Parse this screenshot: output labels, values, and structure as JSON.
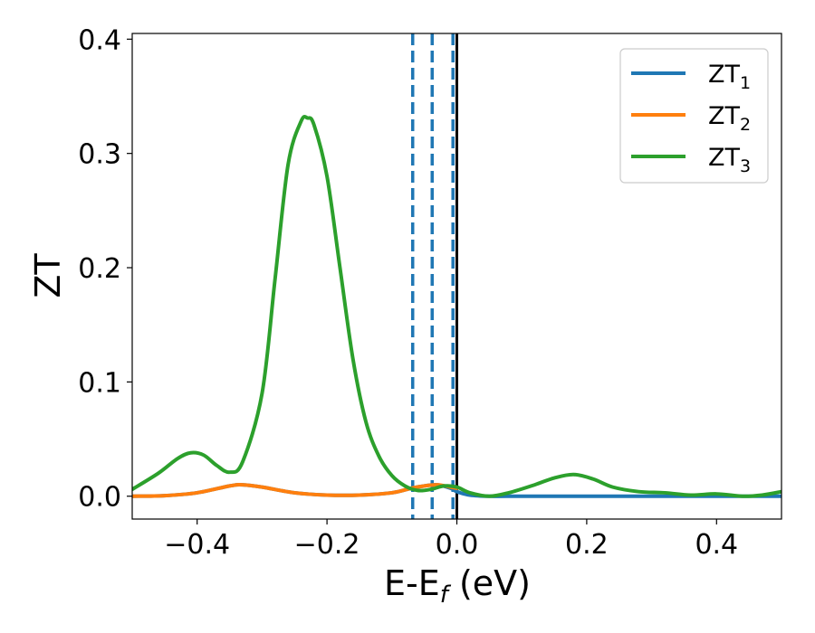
{
  "chart_data": {
    "type": "line",
    "xlabel": "E-E",
    "xlabel_sub": "f",
    "xlabel_unit": " (eV)",
    "ylabel": "ZT",
    "xlim": [
      -0.5,
      0.5
    ],
    "ylim": [
      -0.02,
      0.405
    ],
    "x_ticks": [
      -0.4,
      -0.2,
      0.0,
      0.2,
      0.4
    ],
    "x_tick_labels": [
      "−0.4",
      "−0.2",
      "0.0",
      "0.2",
      "0.4"
    ],
    "y_ticks": [
      0.0,
      0.1,
      0.2,
      0.3,
      0.4
    ],
    "y_tick_labels": [
      "0.0",
      "0.1",
      "0.2",
      "0.3",
      "0.4"
    ],
    "legend_position": "top-right",
    "grid": false,
    "vlines": [
      {
        "x": -0.068,
        "style": "dashed",
        "color": "#1f77b4"
      },
      {
        "x": -0.038,
        "style": "dashed",
        "color": "#1f77b4"
      },
      {
        "x": -0.006,
        "style": "dashed",
        "color": "#1f77b4"
      },
      {
        "x": 0.0,
        "style": "solid",
        "color": "#000000"
      }
    ],
    "series": [
      {
        "name": "ZT",
        "sub": "1",
        "color": "#1f77b4",
        "x": [
          -0.5,
          -0.45,
          -0.4,
          -0.35,
          -0.33,
          -0.3,
          -0.25,
          -0.2,
          -0.15,
          -0.1,
          -0.07,
          -0.05,
          -0.03,
          -0.01,
          0.0,
          0.02,
          0.05,
          0.1,
          0.2,
          0.3,
          0.4,
          0.5
        ],
        "y": [
          0.0,
          0.0005,
          0.003,
          0.009,
          0.01,
          0.008,
          0.003,
          0.001,
          0.001,
          0.003,
          0.007,
          0.009,
          0.01,
          0.007,
          0.004,
          0.001,
          0.0,
          0.0,
          0.0,
          0.0,
          0.0,
          0.0
        ]
      },
      {
        "name": "ZT",
        "sub": "2",
        "color": "#ff7f0e",
        "x": [
          -0.5,
          -0.45,
          -0.4,
          -0.35,
          -0.33,
          -0.3,
          -0.25,
          -0.2,
          -0.15,
          -0.1,
          -0.07,
          -0.05,
          -0.03,
          -0.01,
          0.0
        ],
        "y": [
          0.0,
          0.0005,
          0.003,
          0.009,
          0.01,
          0.008,
          0.003,
          0.001,
          0.001,
          0.003,
          0.007,
          0.009,
          0.01,
          0.008,
          0.007
        ]
      },
      {
        "name": "ZT",
        "sub": "3",
        "color": "#2ca02c",
        "x": [
          -0.5,
          -0.46,
          -0.43,
          -0.41,
          -0.39,
          -0.37,
          -0.35,
          -0.33,
          -0.3,
          -0.28,
          -0.26,
          -0.24,
          -0.23,
          -0.22,
          -0.2,
          -0.18,
          -0.16,
          -0.14,
          -0.12,
          -0.1,
          -0.08,
          -0.06,
          -0.04,
          -0.02,
          0.0,
          0.02,
          0.05,
          0.08,
          0.12,
          0.15,
          0.18,
          0.21,
          0.24,
          0.28,
          0.32,
          0.36,
          0.4,
          0.44,
          0.47,
          0.5
        ],
        "y": [
          0.006,
          0.02,
          0.033,
          0.038,
          0.036,
          0.027,
          0.021,
          0.03,
          0.09,
          0.19,
          0.29,
          0.328,
          0.331,
          0.325,
          0.28,
          0.2,
          0.12,
          0.065,
          0.035,
          0.018,
          0.009,
          0.005,
          0.006,
          0.009,
          0.008,
          0.003,
          0.0,
          0.003,
          0.01,
          0.016,
          0.019,
          0.015,
          0.008,
          0.004,
          0.003,
          0.001,
          0.002,
          0.0,
          0.001,
          0.004
        ]
      }
    ]
  }
}
